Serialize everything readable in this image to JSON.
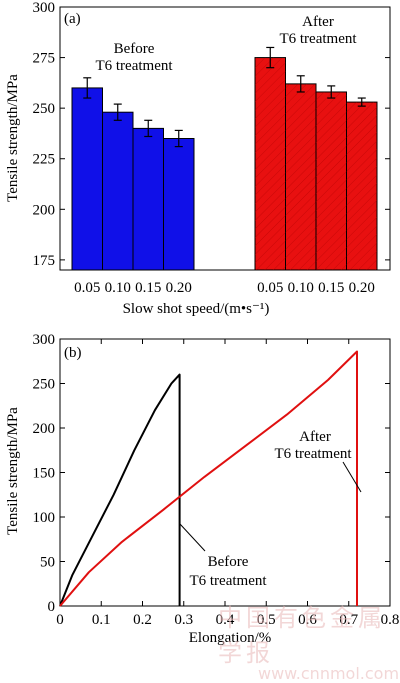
{
  "chart_data": [
    {
      "panel_label": "(a)",
      "type": "bar",
      "ylabel": "Tensile strength/MPa",
      "xlabel": "Slow shot speed/(m•s⁻¹)",
      "ylim": [
        170,
        300
      ],
      "yticks": [
        175,
        200,
        225,
        250,
        275,
        300
      ],
      "groups": [
        {
          "name_line1": "Before",
          "name_line2": "T6 treatment",
          "color": "#1010e8",
          "categories": [
            "0.05",
            "0.10",
            "0.15",
            "0.20"
          ],
          "values": [
            260,
            248,
            240,
            235
          ],
          "errors": [
            5,
            4,
            4,
            4
          ]
        },
        {
          "name_line1": "After",
          "name_line2": "T6 treatment",
          "color": "#e81010",
          "categories": [
            "0.05",
            "0.10",
            "0.15",
            "0.20"
          ],
          "values": [
            275,
            262,
            258,
            253
          ],
          "errors": [
            5,
            4,
            3,
            2
          ]
        }
      ]
    },
    {
      "panel_label": "(b)",
      "type": "line",
      "ylabel": "Tensile strength/MPa",
      "xlabel": "Elongation/%",
      "xlim": [
        0,
        0.8
      ],
      "ylim": [
        0,
        300
      ],
      "xticks": [
        "0",
        "0.1",
        "0.2",
        "0.3",
        "0.4",
        "0.5",
        "0.6",
        "0.7",
        "0.8"
      ],
      "yticks": [
        "0",
        "50",
        "100",
        "150",
        "200",
        "250",
        "300"
      ],
      "series": [
        {
          "label_line1": "Before",
          "label_line2": "T6 treatment",
          "color": "#000000",
          "x": [
            0,
            0.03,
            0.08,
            0.13,
            0.18,
            0.23,
            0.27,
            0.29,
            0.29
          ],
          "y": [
            0,
            35,
            80,
            125,
            175,
            220,
            250,
            260,
            0
          ]
        },
        {
          "label_line1": "After",
          "label_line2": "T6 treatment",
          "color": "#e01010",
          "x": [
            0,
            0.07,
            0.15,
            0.25,
            0.35,
            0.45,
            0.55,
            0.65,
            0.72,
            0.72
          ],
          "y": [
            0,
            38,
            72,
            108,
            145,
            180,
            215,
            254,
            286,
            0
          ]
        }
      ]
    }
  ],
  "watermark": {
    "line1": "中国有色金属学报",
    "line2": "www.cnnmol.com"
  }
}
